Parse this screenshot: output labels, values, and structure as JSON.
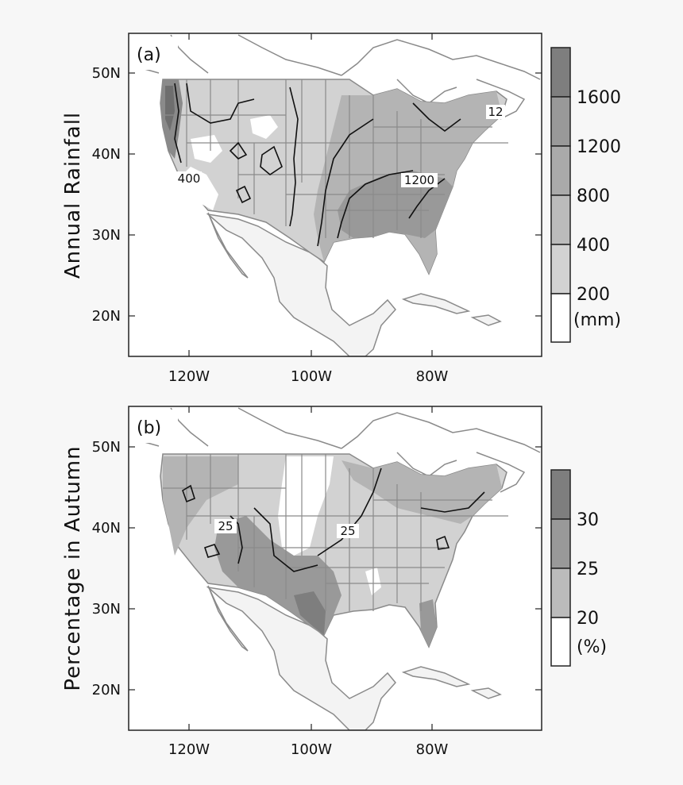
{
  "panels": [
    {
      "id": "a",
      "tag": "(a)",
      "ylabel": "Annual Rainfall",
      "lat_ticks": [
        "50N",
        "40N",
        "30N",
        "20N"
      ],
      "lon_ticks": [
        "120W",
        "100W",
        "80W"
      ],
      "colorbar": {
        "levels": [
          "1600",
          "1200",
          "800",
          "400",
          "200"
        ],
        "unit": "(mm)"
      },
      "contour_labels": [
        "400",
        "1200",
        "12"
      ]
    },
    {
      "id": "b",
      "tag": "(b)",
      "ylabel": "Percentage in Autumn",
      "lat_ticks": [
        "50N",
        "40N",
        "30N",
        "20N"
      ],
      "lon_ticks": [
        "120W",
        "100W",
        "80W"
      ],
      "colorbar": {
        "levels": [
          "30",
          "25",
          "20"
        ],
        "unit": "(%)"
      },
      "contour_labels": [
        "25",
        "25"
      ]
    }
  ],
  "colors": {
    "frame": "#222222",
    "coast": "#8a8a8a",
    "shade_light": "#d2d2d2",
    "shade_mid": "#b4b4b4",
    "shade_dark": "#999999",
    "shade_darker": "#7e7e7e",
    "land_white": "#ffffff"
  }
}
